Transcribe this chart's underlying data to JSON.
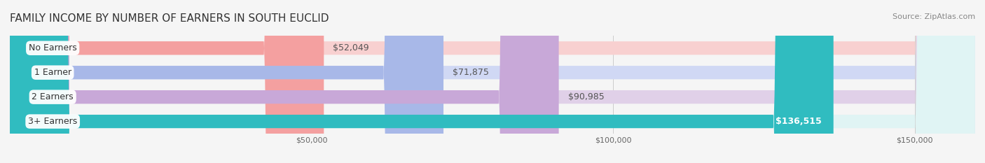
{
  "title": "FAMILY INCOME BY NUMBER OF EARNERS IN SOUTH EUCLID",
  "source": "Source: ZipAtlas.com",
  "categories": [
    "No Earners",
    "1 Earner",
    "2 Earners",
    "3+ Earners"
  ],
  "values": [
    52049,
    71875,
    90985,
    136515
  ],
  "value_labels": [
    "$52,049",
    "$71,875",
    "$90,985",
    "$136,515"
  ],
  "bar_colors": [
    "#f4a0a0",
    "#a8b8e8",
    "#c8a8d8",
    "#30bcc0"
  ],
  "bar_bg_colors": [
    "#f8d0d0",
    "#d0d8f4",
    "#e0d0e8",
    "#e0f4f4"
  ],
  "label_bg": "#ffffff",
  "background_color": "#f5f5f5",
  "xlim": [
    0,
    160000
  ],
  "xticks": [
    50000,
    100000,
    150000
  ],
  "xtick_labels": [
    "$50,000",
    "$100,000",
    "$150,000"
  ],
  "title_fontsize": 11,
  "source_fontsize": 8,
  "bar_label_fontsize": 9,
  "value_fontsize": 9,
  "bar_height": 0.55,
  "bar_gap": 1.0
}
